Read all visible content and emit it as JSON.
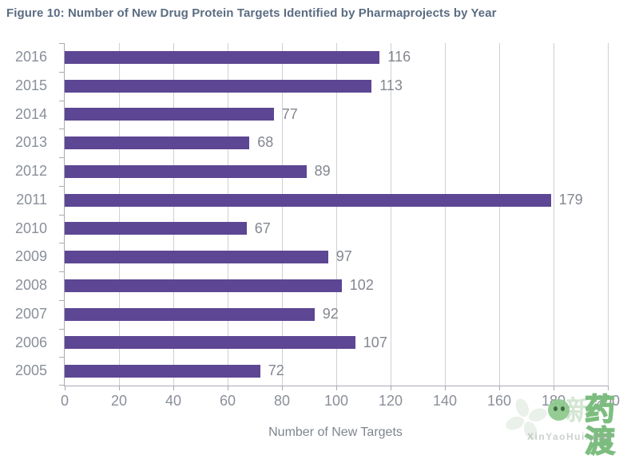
{
  "figure": {
    "title": "Figure 10: Number of New Drug Protein Targets Identified by Pharmaprojects by Year"
  },
  "chart_data": {
    "type": "bar",
    "orientation": "horizontal",
    "title": "Figure 10: Number of New Drug Protein Targets Identified by Pharmaprojects by Year",
    "categories": [
      "2016",
      "2015",
      "2014",
      "2013",
      "2012",
      "2011",
      "2010",
      "2009",
      "2008",
      "2007",
      "2006",
      "2005"
    ],
    "values": [
      116,
      113,
      77,
      68,
      89,
      179,
      67,
      97,
      102,
      92,
      107,
      72
    ],
    "xlabel": "Number of New Targets",
    "ylabel": "",
    "xlim": [
      0,
      200
    ],
    "xticks": [
      0,
      20,
      40,
      60,
      80,
      100,
      120,
      140,
      160,
      180,
      200
    ],
    "grid": true,
    "legend": false,
    "bar_color": "#5d4693"
  },
  "watermark": {
    "brand_prefix": "新",
    "brand": "药渡",
    "site": "XinYaoHui.com"
  },
  "colors": {
    "title": "#5b6c82",
    "bar": "#5d4693",
    "axis": "#a6abb3",
    "grid": "#ccd0d5",
    "tick_label": "#8a8f99",
    "value_label": "#83878f",
    "watermark_green": "#8cc88c"
  }
}
